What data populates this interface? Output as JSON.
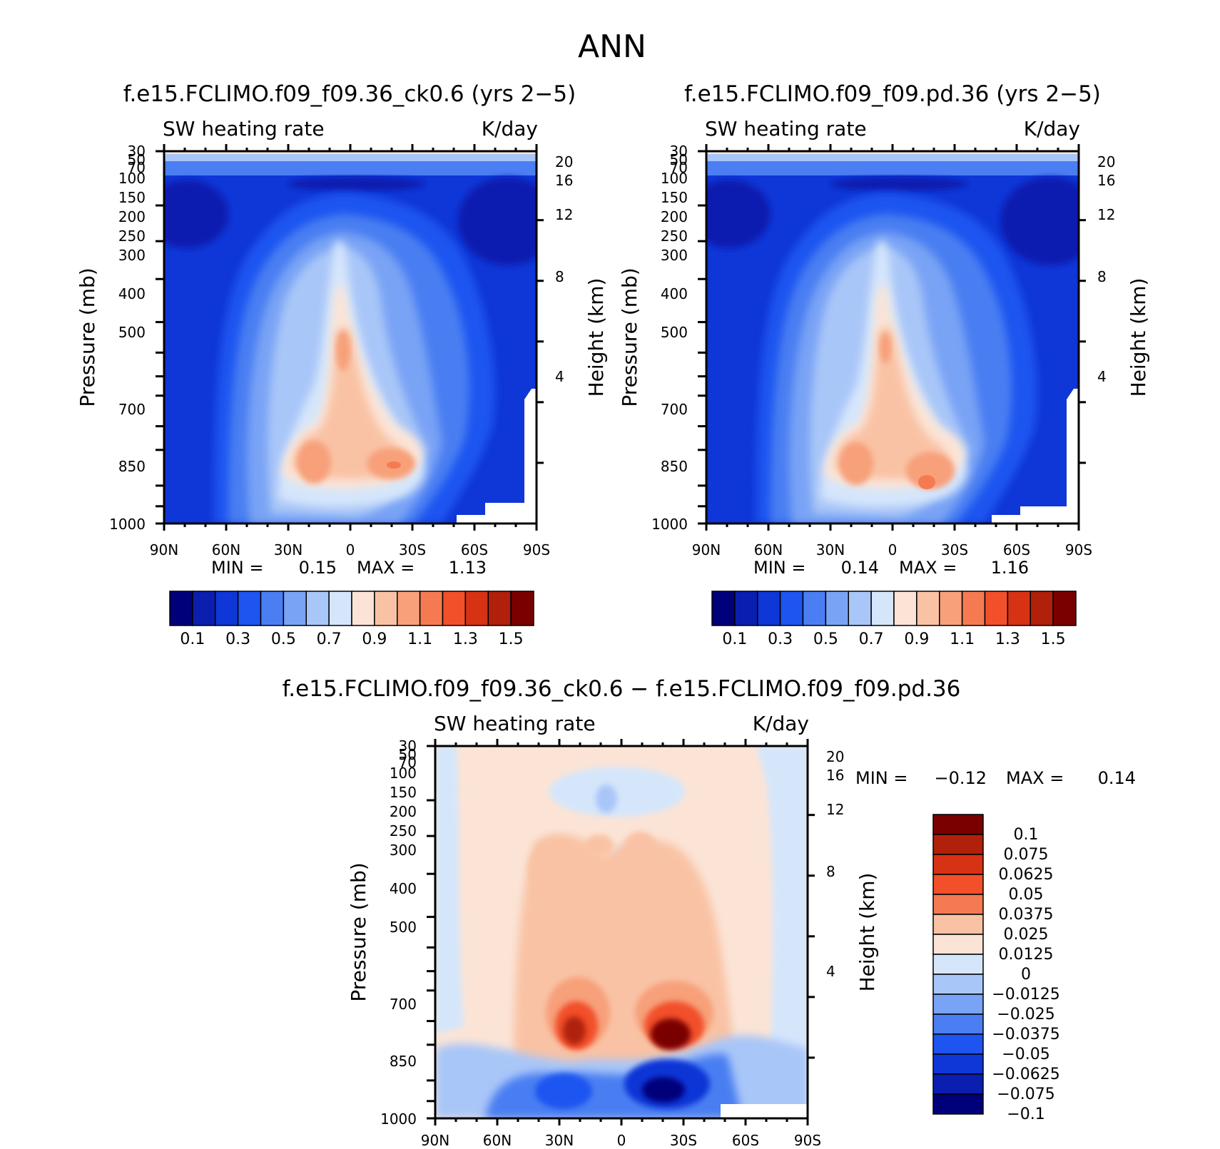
{
  "figure_title": "ANN",
  "chart_data": [
    {
      "type": "heatmap",
      "id": "p1",
      "title": "f.e15.FCLIMO.f09_f09.36_ck0.6 (yrs 2−5)",
      "left_label": "SW heating rate",
      "right_label": "K/day",
      "ylabel": "Pressure (mb)",
      "ylabel_right": "Height (km)",
      "x_ticks": [
        "90N",
        "60N",
        "30N",
        "0",
        "30S",
        "60S",
        "90S"
      ],
      "y_ticks": [
        "30",
        "50",
        "70",
        "100",
        "150",
        "200",
        "250",
        "300",
        "400",
        "500",
        "700",
        "850",
        "1000"
      ],
      "height_ticks": [
        "20",
        "16",
        "12",
        "8",
        "4"
      ],
      "min_label": "MIN =",
      "min_value": "0.15",
      "max_label": "MAX =",
      "max_value": "1.13",
      "colorbar_labels": [
        "0.1",
        "0.3",
        "0.5",
        "0.7",
        "0.9",
        "1.1",
        "1.3",
        "1.5"
      ],
      "colorbar_colors": [
        "#00007a",
        "#0a1fb0",
        "#0f36d6",
        "#1e55f0",
        "#4a7ef2",
        "#79a3f5",
        "#a9c6f8",
        "#d5e6fb",
        "#fbe4d6",
        "#f9c2a4",
        "#f7a07a",
        "#f57a52",
        "#f2502a",
        "#d83214",
        "#b0200a",
        "#7a0000"
      ]
    },
    {
      "type": "heatmap",
      "id": "p2",
      "title": "f.e15.FCLIMO.f09_f09.pd.36 (yrs 2−5)",
      "left_label": "SW heating rate",
      "right_label": "K/day",
      "ylabel": "Pressure (mb)",
      "ylabel_right": "Height (km)",
      "x_ticks": [
        "90N",
        "60N",
        "30N",
        "0",
        "30S",
        "60S",
        "90S"
      ],
      "y_ticks": [
        "30",
        "50",
        "70",
        "100",
        "150",
        "200",
        "250",
        "300",
        "400",
        "500",
        "700",
        "850",
        "1000"
      ],
      "height_ticks": [
        "20",
        "16",
        "12",
        "8",
        "4"
      ],
      "min_label": "MIN =",
      "min_value": "0.14",
      "max_label": "MAX =",
      "max_value": "1.16",
      "colorbar_labels": [
        "0.1",
        "0.3",
        "0.5",
        "0.7",
        "0.9",
        "1.1",
        "1.3",
        "1.5"
      ],
      "colorbar_colors": [
        "#00007a",
        "#0a1fb0",
        "#0f36d6",
        "#1e55f0",
        "#4a7ef2",
        "#79a3f5",
        "#a9c6f8",
        "#d5e6fb",
        "#fbe4d6",
        "#f9c2a4",
        "#f7a07a",
        "#f57a52",
        "#f2502a",
        "#d83214",
        "#b0200a",
        "#7a0000"
      ]
    },
    {
      "type": "heatmap",
      "id": "p3",
      "title": "f.e15.FCLIMO.f09_f09.36_ck0.6 − f.e15.FCLIMO.f09_f09.pd.36",
      "left_label": "SW heating rate",
      "right_label": "K/day",
      "ylabel": "Pressure (mb)",
      "ylabel_right": "Height (km)",
      "x_ticks": [
        "90N",
        "60N",
        "30N",
        "0",
        "30S",
        "60S",
        "90S"
      ],
      "y_ticks": [
        "30",
        "50",
        "70",
        "100",
        "150",
        "200",
        "250",
        "300",
        "400",
        "500",
        "700",
        "850",
        "1000"
      ],
      "height_ticks": [
        "20",
        "16",
        "12",
        "8",
        "4"
      ],
      "min_label": "MIN =",
      "min_value": "−0.12",
      "max_label": "MAX =",
      "max_value": "0.14",
      "colorbar_labels": [
        "0.1",
        "0.075",
        "0.0625",
        "0.05",
        "0.0375",
        "0.025",
        "0.0125",
        "0",
        "−0.0125",
        "−0.025",
        "−0.0375",
        "−0.05",
        "−0.0625",
        "−0.075",
        "−0.1"
      ],
      "colorbar_colors": [
        "#7a0000",
        "#b0200a",
        "#d83214",
        "#f2502a",
        "#f57a52",
        "#f9c2a4",
        "#fbe4d6",
        "#d5e6fb",
        "#a9c6f8",
        "#79a3f5",
        "#4a7ef2",
        "#1e55f0",
        "#0f36d6",
        "#0a1fb0",
        "#00007a"
      ]
    }
  ]
}
